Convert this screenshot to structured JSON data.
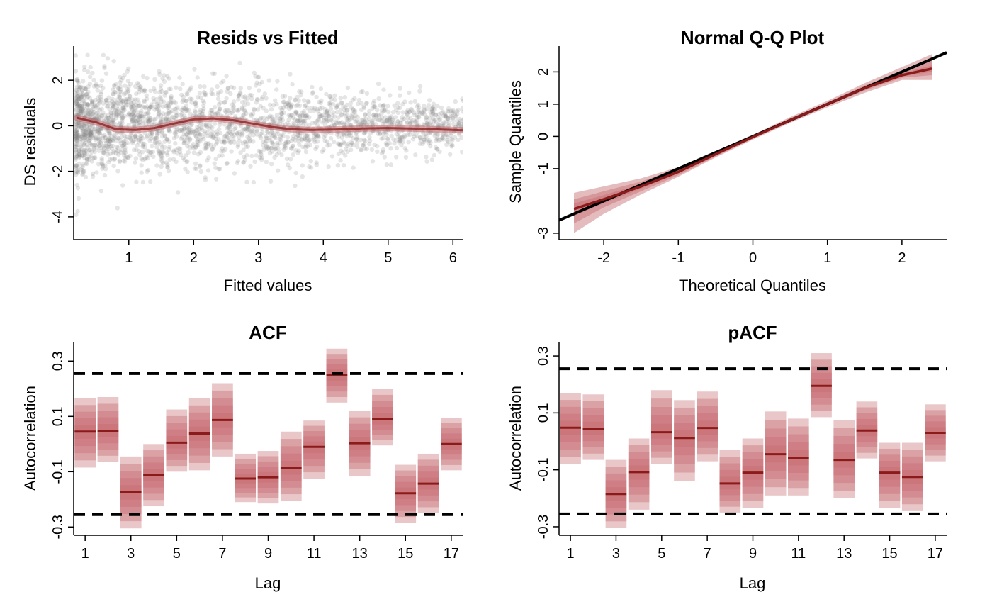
{
  "colors": {
    "points": "#888888",
    "smooth": "#8B2323",
    "band": "#C46A6E",
    "reference": "#000000",
    "median": "#8B1A1A"
  },
  "chart_data": [
    {
      "id": "resid",
      "type": "scatter",
      "title": "Resids vs Fitted",
      "xlabel": "Fitted values",
      "ylabel": "DS residuals",
      "xlim": [
        0.15,
        6.15
      ],
      "ylim": [
        -5.0,
        3.5
      ],
      "xticks": [
        "1",
        "2",
        "3",
        "4",
        "5",
        "6"
      ],
      "xtick_values": [
        1,
        2,
        3,
        4,
        5,
        6
      ],
      "yticks": [
        "-4",
        "-2",
        "0",
        "2"
      ],
      "ytick_values": [
        -4,
        -2,
        0,
        2
      ],
      "smooth": {
        "x": [
          0.2,
          0.5,
          0.8,
          1.1,
          1.4,
          1.7,
          2.0,
          2.3,
          2.6,
          2.9,
          3.2,
          3.5,
          3.8,
          4.2,
          4.6,
          5.0,
          5.5,
          6.0,
          6.15
        ],
        "y": [
          0.35,
          0.15,
          -0.15,
          -0.18,
          -0.1,
          0.1,
          0.28,
          0.32,
          0.25,
          0.1,
          -0.05,
          -0.15,
          -0.18,
          -0.16,
          -0.12,
          -0.1,
          -0.13,
          -0.18,
          -0.2
        ]
      }
    },
    {
      "id": "qq",
      "type": "line",
      "title": "Normal Q-Q Plot",
      "xlabel": "Theoretical Quantiles",
      "ylabel": "Sample Quantiles",
      "xlim": [
        -2.6,
        2.6
      ],
      "ylim": [
        -3.2,
        2.8
      ],
      "xticks": [
        "-2",
        "-1",
        "0",
        "1",
        "2"
      ],
      "xtick_values": [
        -2,
        -1,
        0,
        1,
        2
      ],
      "yticks": [
        "-3",
        "-1",
        "0",
        "1",
        "2"
      ],
      "ytick_values": [
        -3,
        -1,
        0,
        1,
        2
      ],
      "reference_line": {
        "intercept": 0,
        "slope": 1
      },
      "median": {
        "x": [
          -2.4,
          -2.0,
          -1.5,
          -1.0,
          -0.5,
          0.0,
          0.5,
          1.0,
          1.5,
          2.0,
          2.4
        ],
        "y": [
          -2.25,
          -1.95,
          -1.55,
          -1.1,
          -0.55,
          -0.02,
          0.5,
          1.0,
          1.5,
          1.9,
          2.1
        ]
      },
      "bands": [
        {
          "x": [
            -2.4,
            -2.0,
            -1.5,
            -1.0,
            -0.5,
            0.0,
            0.5,
            1.0,
            1.5,
            2.0,
            2.4
          ],
          "lower": [
            -3.0,
            -2.4,
            -1.8,
            -1.25,
            -0.65,
            -0.1,
            0.42,
            0.9,
            1.35,
            1.75,
            1.75
          ],
          "upper": [
            -1.75,
            -1.55,
            -1.3,
            -0.95,
            -0.45,
            0.05,
            0.6,
            1.1,
            1.65,
            2.15,
            2.55
          ]
        },
        {
          "x": [
            -2.4,
            -2.0,
            -1.5,
            -1.0,
            -0.5,
            0.0,
            0.5,
            1.0,
            1.5,
            2.0,
            2.4
          ],
          "lower": [
            -2.7,
            -2.2,
            -1.7,
            -1.2,
            -0.62,
            -0.07,
            0.45,
            0.95,
            1.42,
            1.82,
            1.9
          ],
          "upper": [
            -1.95,
            -1.7,
            -1.4,
            -1.0,
            -0.48,
            0.03,
            0.56,
            1.05,
            1.58,
            2.02,
            2.35
          ]
        },
        {
          "x": [
            -2.4,
            -2.0,
            -1.5,
            -1.0,
            -0.5,
            0.0,
            0.5,
            1.0,
            1.5,
            2.0,
            2.4
          ],
          "lower": [
            -2.45,
            -2.07,
            -1.62,
            -1.15,
            -0.58,
            -0.04,
            0.48,
            0.98,
            1.47,
            1.86,
            2.0
          ],
          "upper": [
            -2.08,
            -1.82,
            -1.48,
            -1.05,
            -0.52,
            0.0,
            0.53,
            1.02,
            1.53,
            1.95,
            2.2
          ]
        }
      ]
    },
    {
      "id": "acf",
      "type": "bar",
      "title": "ACF",
      "xlabel": "Lag",
      "ylabel": "Autocorrelation",
      "xlim": [
        0.5,
        17.5
      ],
      "ylim": [
        -0.33,
        0.37
      ],
      "xticks": [
        "1",
        "3",
        "5",
        "7",
        "9",
        "11",
        "13",
        "15",
        "17"
      ],
      "xtick_values": [
        1,
        3,
        5,
        7,
        9,
        11,
        13,
        15,
        17
      ],
      "yticks": [
        "-0.3",
        "-0.1",
        "0.1",
        "0.3"
      ],
      "ytick_values": [
        -0.3,
        -0.1,
        0.1,
        0.3
      ],
      "threshold": 0.255,
      "lags": [
        1,
        2,
        3,
        4,
        5,
        6,
        7,
        8,
        9,
        10,
        11,
        12,
        13,
        14,
        15,
        16,
        17
      ],
      "median": [
        0.045,
        0.048,
        -0.175,
        -0.112,
        0.005,
        0.038,
        0.087,
        -0.125,
        -0.12,
        -0.087,
        -0.01,
        0.25,
        0.003,
        0.09,
        -0.178,
        -0.143,
        0.0
      ],
      "lower": [
        -0.085,
        -0.065,
        -0.305,
        -0.225,
        -0.1,
        -0.095,
        -0.045,
        -0.21,
        -0.215,
        -0.205,
        -0.125,
        0.15,
        -0.115,
        -0.005,
        -0.285,
        -0.25,
        -0.095
      ],
      "upper": [
        0.165,
        0.17,
        -0.045,
        0.0,
        0.125,
        0.165,
        0.22,
        -0.035,
        -0.025,
        0.045,
        0.085,
        0.345,
        0.12,
        0.2,
        -0.075,
        -0.035,
        0.095
      ]
    },
    {
      "id": "pacf",
      "type": "bar",
      "title": "pACF",
      "xlabel": "Lag",
      "ylabel": "Autocorrelation",
      "xlim": [
        0.5,
        17.5
      ],
      "ylim": [
        -0.33,
        0.35
      ],
      "xticks": [
        "1",
        "3",
        "5",
        "7",
        "9",
        "11",
        "13",
        "15",
        "17"
      ],
      "xtick_values": [
        1,
        3,
        5,
        7,
        9,
        11,
        13,
        15,
        17
      ],
      "yticks": [
        "-0.3",
        "-0.1",
        "0.1",
        "0.3"
      ],
      "ytick_values": [
        -0.3,
        -0.1,
        0.1,
        0.3
      ],
      "threshold": 0.255,
      "lags": [
        1,
        2,
        3,
        4,
        5,
        6,
        7,
        8,
        9,
        10,
        11,
        12,
        13,
        14,
        15,
        16,
        17
      ],
      "median": [
        0.048,
        0.045,
        -0.185,
        -0.108,
        0.032,
        0.012,
        0.047,
        -0.148,
        -0.11,
        -0.045,
        -0.058,
        0.195,
        -0.065,
        0.038,
        -0.11,
        -0.125,
        0.03
      ],
      "lower": [
        -0.08,
        -0.065,
        -0.305,
        -0.24,
        -0.08,
        -0.14,
        -0.07,
        -0.25,
        -0.235,
        -0.19,
        -0.19,
        0.085,
        -0.2,
        -0.06,
        -0.235,
        -0.245,
        -0.07
      ],
      "upper": [
        0.17,
        0.165,
        -0.065,
        0.01,
        0.18,
        0.145,
        0.175,
        -0.03,
        0.01,
        0.105,
        0.08,
        0.31,
        0.075,
        0.14,
        -0.005,
        -0.005,
        0.13
      ]
    }
  ]
}
